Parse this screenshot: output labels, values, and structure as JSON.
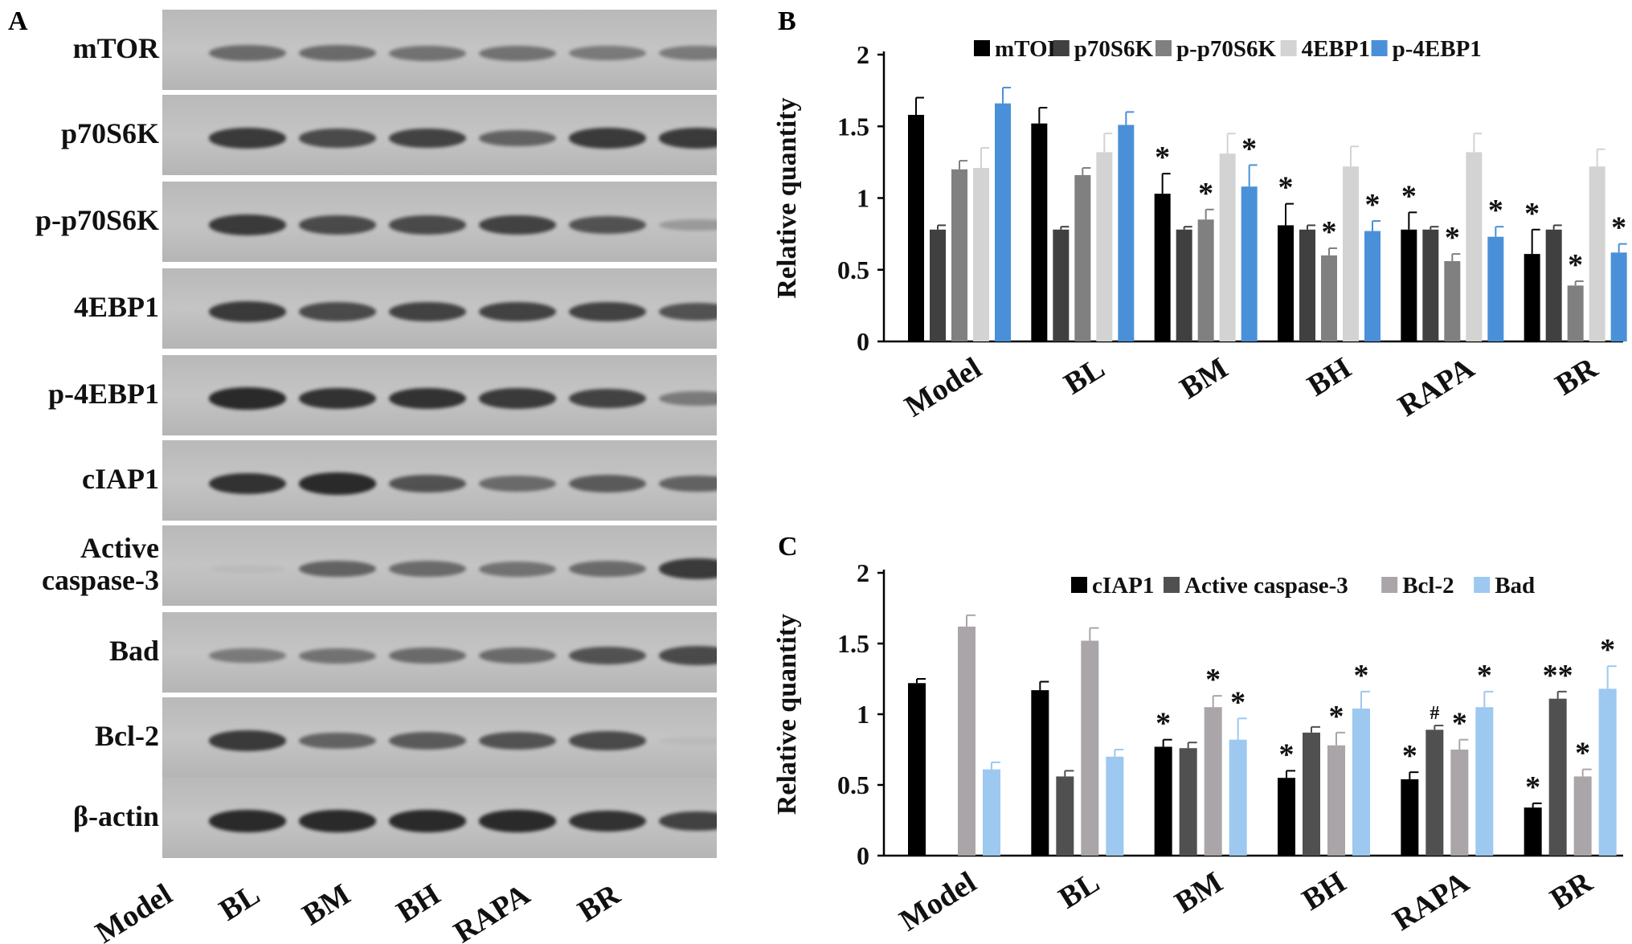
{
  "panels": {
    "a": {
      "letter": "A"
    },
    "b": {
      "letter": "B"
    },
    "c": {
      "letter": "C"
    }
  },
  "blot": {
    "rows": [
      "mTOR",
      "p70S6K",
      "p-p70S6K",
      "4EBP1",
      "p-4EBP1",
      "cIAP1",
      "Active caspase-3",
      "Bad",
      "Bcl-2",
      "β-actin"
    ],
    "lanes": [
      "Model",
      "BL",
      "BM",
      "BH",
      "RAPA",
      "BR"
    ],
    "band_intensity": [
      [
        0.55,
        0.55,
        0.5,
        0.5,
        0.45,
        0.45
      ],
      [
        0.85,
        0.75,
        0.8,
        0.6,
        0.85,
        0.85
      ],
      [
        0.85,
        0.75,
        0.75,
        0.8,
        0.7,
        0.25
      ],
      [
        0.85,
        0.75,
        0.8,
        0.8,
        0.8,
        0.7
      ],
      [
        0.95,
        0.9,
        0.9,
        0.85,
        0.8,
        0.45
      ],
      [
        0.9,
        0.95,
        0.7,
        0.55,
        0.65,
        0.6
      ],
      [
        0.05,
        0.6,
        0.55,
        0.5,
        0.55,
        0.85
      ],
      [
        0.45,
        0.5,
        0.55,
        0.55,
        0.7,
        0.75
      ],
      [
        0.85,
        0.6,
        0.65,
        0.7,
        0.75,
        0.05
      ],
      [
        0.95,
        0.95,
        0.95,
        0.95,
        0.9,
        0.8
      ]
    ],
    "colors": {
      "background": "#c4c4c4",
      "band": "#1a1a1a"
    }
  },
  "chart_data": [
    {
      "type": "bar",
      "panel": "B",
      "categories": [
        "Model",
        "BL",
        "BM",
        "BH",
        "RAPA",
        "BR"
      ],
      "ylabel": "Relative quantity",
      "ylim": [
        0,
        2
      ],
      "yticks": [
        "0",
        "0.5",
        "1",
        "1.5",
        "2"
      ],
      "legend_position": "top",
      "series": [
        {
          "name": "mTOR",
          "color": "#000000",
          "values": [
            1.58,
            1.52,
            1.03,
            0.81,
            0.78,
            0.61
          ],
          "errors": [
            0.12,
            0.11,
            0.14,
            0.15,
            0.12,
            0.17
          ],
          "marks": [
            "",
            "",
            "*",
            "*",
            "*",
            "*"
          ]
        },
        {
          "name": "p70S6K",
          "color": "#404040",
          "values": [
            0.78,
            0.78,
            0.78,
            0.78,
            0.78,
            0.78
          ],
          "errors": [
            0.03,
            0.02,
            0.02,
            0.03,
            0.02,
            0.03
          ],
          "marks": [
            "",
            "",
            "",
            "",
            "",
            ""
          ]
        },
        {
          "name": "p-p70S6K",
          "color": "#808080",
          "values": [
            1.2,
            1.16,
            0.85,
            0.6,
            0.56,
            0.39
          ],
          "errors": [
            0.06,
            0.05,
            0.07,
            0.05,
            0.05,
            0.03
          ],
          "marks": [
            "",
            "",
            "*",
            "*",
            "*",
            "*"
          ]
        },
        {
          "name": "4EBP1",
          "color": "#d3d3d3",
          "values": [
            1.21,
            1.32,
            1.31,
            1.22,
            1.32,
            1.22
          ],
          "errors": [
            0.14,
            0.13,
            0.14,
            0.14,
            0.13,
            0.12
          ],
          "marks": [
            "",
            "",
            "",
            "",
            "",
            ""
          ]
        },
        {
          "name": "p-4EBP1",
          "color": "#4a90d9",
          "values": [
            1.66,
            1.51,
            1.08,
            0.77,
            0.73,
            0.62
          ],
          "errors": [
            0.11,
            0.09,
            0.15,
            0.07,
            0.07,
            0.06
          ],
          "marks": [
            "",
            "",
            "*",
            "*",
            "*",
            "*"
          ]
        }
      ]
    },
    {
      "type": "bar",
      "panel": "C",
      "categories": [
        "Model",
        "BL",
        "BM",
        "BH",
        "RAPA",
        "BR"
      ],
      "ylabel": "Relative quantity",
      "ylim": [
        0,
        2
      ],
      "yticks": [
        "0",
        "0.5",
        "1",
        "1.5",
        "2"
      ],
      "legend_position": "top",
      "series": [
        {
          "name": "cIAP1",
          "color": "#000000",
          "values": [
            1.22,
            1.17,
            0.77,
            0.55,
            0.54,
            0.34
          ],
          "errors": [
            0.03,
            0.06,
            0.05,
            0.05,
            0.05,
            0.03
          ],
          "marks": [
            "",
            "",
            "*",
            "*",
            "*",
            "*"
          ]
        },
        {
          "name": "Active caspase-3",
          "color": "#505050",
          "values": [
            0,
            0.56,
            0.76,
            0.87,
            0.89,
            1.11
          ],
          "errors": [
            0,
            0.04,
            0.04,
            0.04,
            0.03,
            0.05
          ],
          "marks": [
            "",
            "",
            "",
            "",
            "#",
            "**"
          ]
        },
        {
          "name": "Bcl-2",
          "color": "#aaa5a8",
          "values": [
            1.62,
            1.52,
            1.05,
            0.78,
            0.75,
            0.56
          ],
          "errors": [
            0.08,
            0.09,
            0.08,
            0.09,
            0.07,
            0.05
          ],
          "marks": [
            "",
            "",
            "*",
            "*",
            "*",
            "*"
          ]
        },
        {
          "name": "Bad",
          "color": "#9dc8f0",
          "values": [
            0.61,
            0.7,
            0.82,
            1.04,
            1.05,
            1.18
          ],
          "errors": [
            0.05,
            0.05,
            0.15,
            0.12,
            0.11,
            0.16
          ],
          "marks": [
            "",
            "",
            "*",
            "*",
            "*",
            "*"
          ]
        }
      ]
    }
  ]
}
